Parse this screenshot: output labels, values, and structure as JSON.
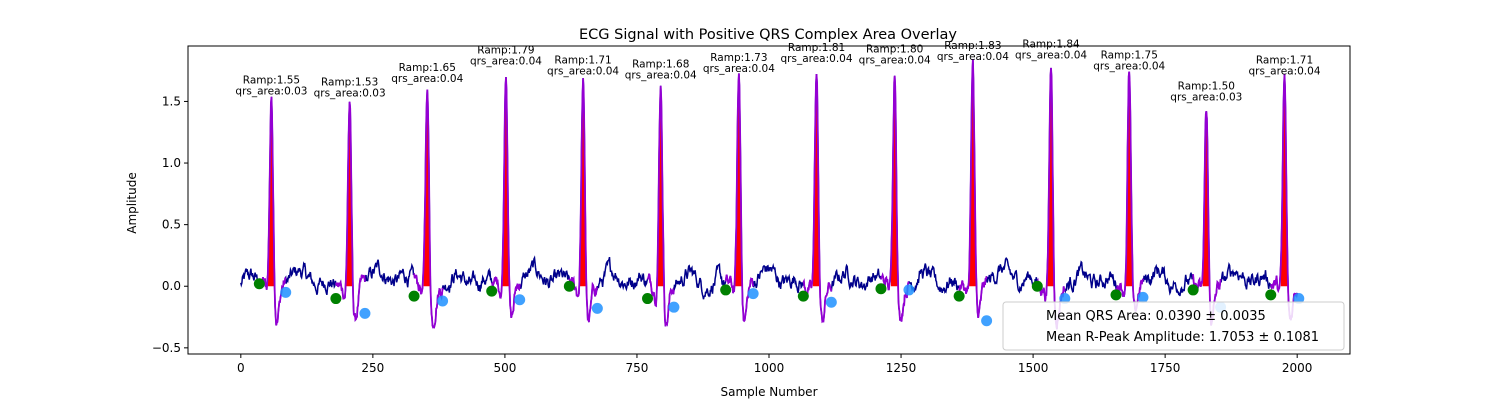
{
  "chart_data": {
    "type": "line",
    "title": "ECG Signal with Positive QRS Complex Area Overlay",
    "xlabel": "Sample Number",
    "ylabel": "Amplitude",
    "xlim": [
      -100,
      2100
    ],
    "ylim": [
      -0.55,
      1.95
    ],
    "xticks": [
      0,
      250,
      500,
      750,
      1000,
      1250,
      1500,
      1750,
      2000
    ],
    "yticks": [
      -0.5,
      0.0,
      0.5,
      1.0,
      1.5
    ],
    "ytick_labels": [
      "−0.5",
      "0.0",
      "0.5",
      "1.0",
      "1.5"
    ],
    "grid": false,
    "colors": {
      "signal": "#00008b",
      "qrs_segment": "#9400d3",
      "qrs_area_fill": "#ff0000",
      "qrs_onset_marker": "#008000",
      "qrs_offset_marker": "#1e90ff"
    },
    "beats": [
      {
        "r_sample": 58,
        "r_amp": 1.55,
        "qrs_area": "0.03",
        "ramp_label": "1.55",
        "onset": [
          35,
          0.02
        ],
        "offset": [
          85,
          -0.05
        ]
      },
      {
        "r_sample": 206,
        "r_amp": 1.53,
        "qrs_area": "0.03",
        "ramp_label": "1.53",
        "onset": [
          180,
          -0.1
        ],
        "offset": [
          235,
          -0.22
        ]
      },
      {
        "r_sample": 353,
        "r_amp": 1.65,
        "qrs_area": "0.04",
        "ramp_label": "1.65",
        "onset": [
          328,
          -0.08
        ],
        "offset": [
          382,
          -0.12
        ]
      },
      {
        "r_sample": 502,
        "r_amp": 1.79,
        "qrs_area": "0.04",
        "ramp_label": "1.79",
        "onset": [
          475,
          -0.04
        ],
        "offset": [
          528,
          -0.11
        ]
      },
      {
        "r_sample": 648,
        "r_amp": 1.71,
        "qrs_area": "0.04",
        "ramp_label": "1.71",
        "onset": [
          622,
          0.0
        ],
        "offset": [
          675,
          -0.18
        ]
      },
      {
        "r_sample": 795,
        "r_amp": 1.68,
        "qrs_area": "0.04",
        "ramp_label": "1.68",
        "onset": [
          770,
          -0.1
        ],
        "offset": [
          820,
          -0.17
        ]
      },
      {
        "r_sample": 943,
        "r_amp": 1.73,
        "qrs_area": "0.04",
        "ramp_label": "1.73",
        "onset": [
          918,
          -0.03
        ],
        "offset": [
          970,
          -0.06
        ]
      },
      {
        "r_sample": 1090,
        "r_amp": 1.81,
        "qrs_area": "0.04",
        "ramp_label": "1.81",
        "onset": [
          1065,
          -0.08
        ],
        "offset": [
          1118,
          -0.13
        ]
      },
      {
        "r_sample": 1238,
        "r_amp": 1.8,
        "qrs_area": "0.04",
        "ramp_label": "1.80",
        "onset": [
          1212,
          -0.02
        ],
        "offset": [
          1265,
          -0.03
        ]
      },
      {
        "r_sample": 1386,
        "r_amp": 1.83,
        "qrs_area": "0.04",
        "ramp_label": "1.83",
        "onset": [
          1360,
          -0.08
        ],
        "offset": [
          1412,
          -0.28
        ]
      },
      {
        "r_sample": 1534,
        "r_amp": 1.84,
        "qrs_area": "0.04",
        "ramp_label": "1.84",
        "onset": [
          1508,
          0.0
        ],
        "offset": [
          1560,
          -0.1
        ]
      },
      {
        "r_sample": 1682,
        "r_amp": 1.75,
        "qrs_area": "0.04",
        "ramp_label": "1.75",
        "onset": [
          1657,
          -0.07
        ],
        "offset": [
          1708,
          -0.09
        ]
      },
      {
        "r_sample": 1828,
        "r_amp": 1.5,
        "qrs_area": "0.03",
        "ramp_label": "1.50",
        "onset": [
          1803,
          -0.03
        ],
        "offset": [
          1855,
          -0.17
        ]
      },
      {
        "r_sample": 1976,
        "r_amp": 1.71,
        "qrs_area": "0.04",
        "ramp_label": "1.71",
        "onset": [
          1950,
          -0.07
        ],
        "offset": [
          2003,
          -0.1
        ]
      }
    ],
    "legend": {
      "placement": "lower-right",
      "entries": [
        "Mean QRS Area: 0.0390 ± 0.0035",
        "Mean R-Peak Amplitude: 1.7053 ± 0.1081"
      ]
    }
  }
}
